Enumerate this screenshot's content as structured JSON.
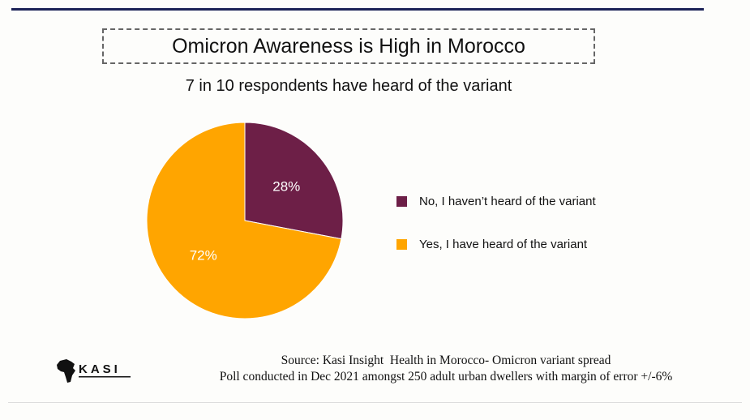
{
  "header": {
    "title": "Omicron Awareness is High in Morocco",
    "subtitle": "7 in 10 respondents have heard of the variant"
  },
  "chart_data": {
    "type": "pie",
    "title": "Omicron Awareness is High in Morocco",
    "subtitle": "7 in 10 respondents have heard of the variant",
    "slices": [
      {
        "label": "No, I haven’t heard of the variant",
        "value": 28,
        "display": "28%",
        "color": "#6d1f47"
      },
      {
        "label": "Yes, I have heard of the variant",
        "value": 72,
        "display": "72%",
        "color": "#ffa500"
      }
    ],
    "start_angle_deg": 0,
    "direction": "clockwise",
    "legend_position": "right"
  },
  "logo": {
    "text": "KASI",
    "icon": "africa-map-icon"
  },
  "footer": {
    "source_line": "Source: Kasi Insight  Health in Morocco- Omicron variant spread",
    "poll_line": "Poll conducted in Dec 2021 amongst 250 adult urban dwellers with margin of error +/-6%"
  },
  "colors": {
    "top_rule": "#1c2257",
    "no_slice": "#6d1f47",
    "yes_slice": "#ffa500"
  }
}
